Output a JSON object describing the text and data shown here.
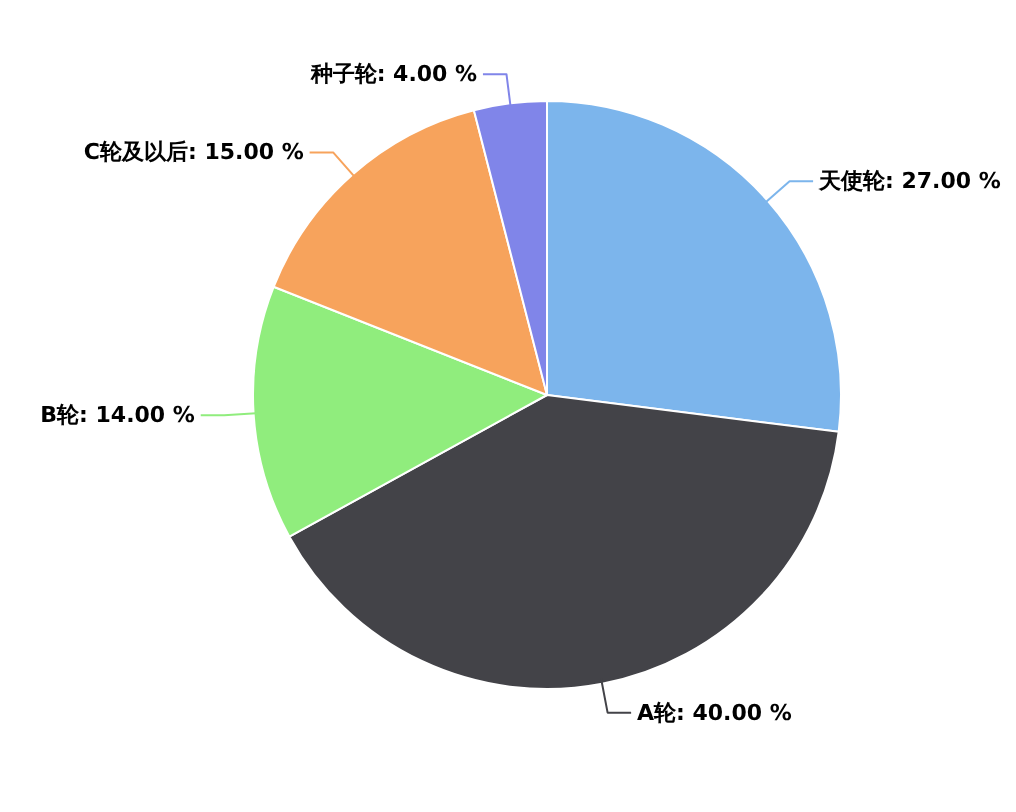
{
  "chart_data": {
    "type": "pie",
    "categories": [
      "天使轮",
      "A轮",
      "B轮",
      "C轮及以后",
      "种子轮"
    ],
    "values": [
      27,
      40,
      14,
      15,
      4
    ],
    "colors": [
      "#7cb5ec",
      "#434348",
      "#90ed7d",
      "#f7a35c",
      "#8085e9"
    ],
    "value_labels": [
      "27.00 %",
      "40.00 %",
      "14.00 %",
      "15.00 %",
      "4.00 %"
    ]
  }
}
